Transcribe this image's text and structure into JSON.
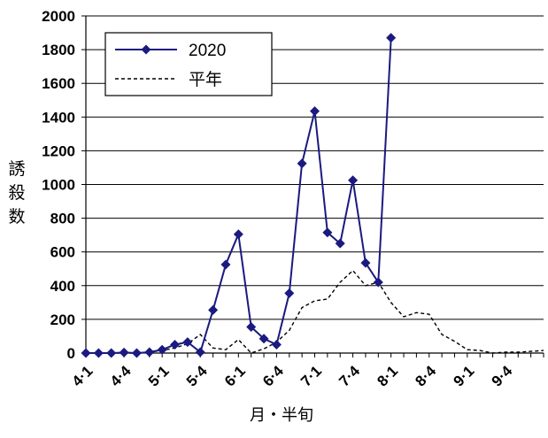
{
  "chart_data": {
    "type": "line",
    "ylabel": "誘殺数",
    "xlabel": "月・半旬",
    "ylim": [
      0,
      2000
    ],
    "yticks": [
      0,
      200,
      400,
      600,
      800,
      1000,
      1200,
      1400,
      1600,
      1800,
      2000
    ],
    "grid": true,
    "legend_position": "top-left",
    "x_tick_labels": [
      {
        "label": "4·1",
        "index": 0
      },
      {
        "label": "4·4",
        "index": 3
      },
      {
        "label": "5·1",
        "index": 6
      },
      {
        "label": "5·4",
        "index": 9
      },
      {
        "label": "6·1",
        "index": 12
      },
      {
        "label": "6·4",
        "index": 15
      },
      {
        "label": "7·1",
        "index": 18
      },
      {
        "label": "7·4",
        "index": 21
      },
      {
        "label": "8·1",
        "index": 24
      },
      {
        "label": "8·4",
        "index": 27
      },
      {
        "label": "9·1",
        "index": 30
      },
      {
        "label": "9·4",
        "index": 33
      }
    ],
    "series": [
      {
        "name": "2020",
        "style": "solid-diamond",
        "color": "#1a1a80",
        "values": [
          0,
          0,
          0,
          3,
          0,
          5,
          20,
          50,
          65,
          5,
          255,
          525,
          705,
          155,
          85,
          50,
          355,
          1125,
          1435,
          715,
          650,
          1025,
          535,
          420,
          1870
        ]
      },
      {
        "name": "平年",
        "style": "dashed",
        "color": "#000000",
        "values": [
          0,
          0,
          0,
          0,
          0,
          5,
          15,
          30,
          55,
          110,
          30,
          20,
          80,
          0,
          25,
          65,
          135,
          270,
          310,
          320,
          420,
          490,
          400,
          420,
          300,
          215,
          240,
          230,
          110,
          70,
          20,
          15,
          0,
          5,
          5,
          10,
          15
        ]
      }
    ]
  }
}
